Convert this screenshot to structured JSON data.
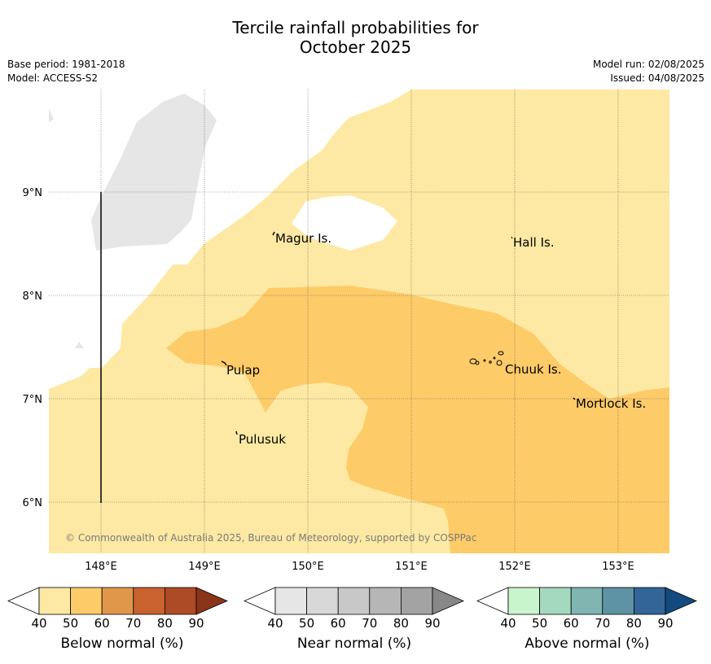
{
  "title_line1": "Tercile rainfall probabilities for",
  "title_line2": "October 2025",
  "base_period": "Base period: 1981-2018",
  "model": "Model: ACCESS-S2",
  "model_run": "Model run: 02/08/2025",
  "issued": "Issued: 04/08/2025",
  "copyright": "© Commonwealth of Australia 2025, Bureau of Meteorology, supported by COSPPac",
  "map": {
    "lat_labels": [
      "9°N",
      "8°N",
      "7°N",
      "6°N"
    ],
    "lon_labels": [
      "148°E",
      "149°E",
      "150°E",
      "151°E",
      "152°E",
      "153°E"
    ],
    "places": [
      "Magur Is.",
      "Hall Is.",
      "Pulap",
      "Chuuk Is.",
      "Mortlock Is.",
      "Pulusuk"
    ],
    "colors": {
      "below_40_50": "#fde9a3",
      "below_50_60": "#fdcb68",
      "near_40_50": "#e6e6e6",
      "no_data": "#ffffff"
    }
  },
  "colorbars": [
    {
      "title": "Below normal (%)",
      "ticks": [
        "40",
        "50",
        "60",
        "70",
        "80",
        "90"
      ],
      "colors": [
        "#fde9a3",
        "#fdcb68",
        "#e0974a",
        "#c9622f",
        "#ad4b26",
        "#8a3418"
      ]
    },
    {
      "title": "Near normal (%)",
      "ticks": [
        "40",
        "50",
        "60",
        "70",
        "80",
        "90"
      ],
      "colors": [
        "#e6e6e6",
        "#d8d8d8",
        "#c8c8c8",
        "#b6b6b6",
        "#a3a3a3",
        "#888888"
      ]
    },
    {
      "title": "Above normal (%)",
      "ticks": [
        "40",
        "50",
        "60",
        "70",
        "80",
        "90"
      ],
      "colors": [
        "#c8f5cc",
        "#a4d9bf",
        "#80b5b1",
        "#5e93a4",
        "#336598",
        "#134a80"
      ]
    }
  ]
}
